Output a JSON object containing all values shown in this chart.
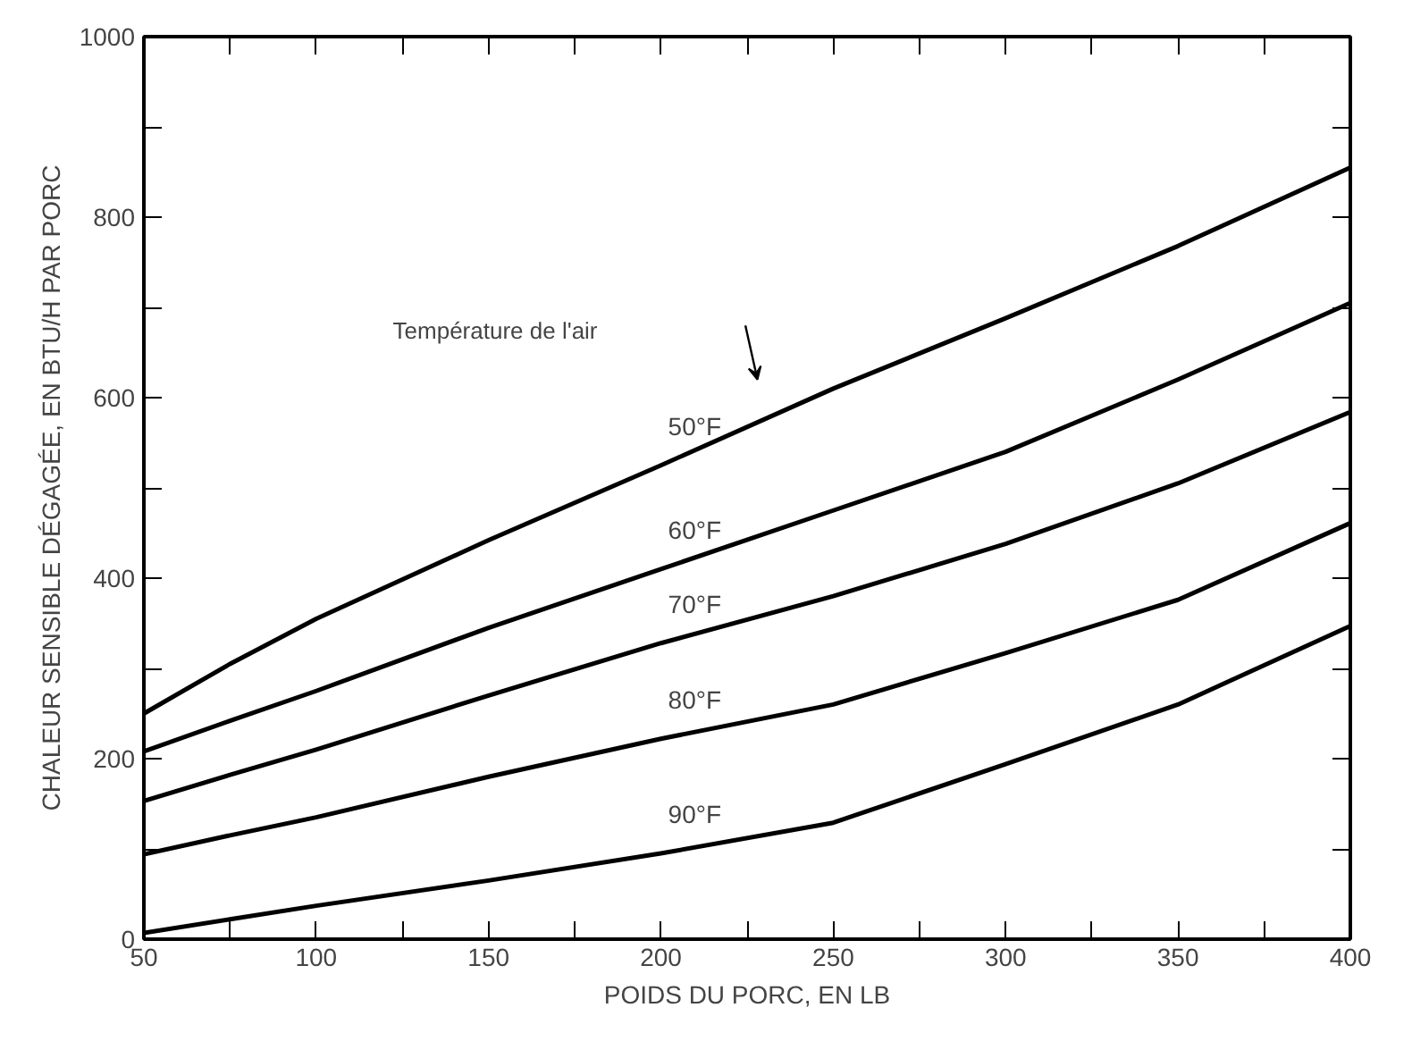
{
  "chart_data": {
    "type": "line",
    "xlabel": "POIDS DU PORC, EN LB",
    "ylabel": "CHALEUR SENSIBLE DÉGAGÉE, EN BTU/H PAR PORC",
    "x": [
      50,
      75,
      100,
      150,
      200,
      250,
      300,
      350,
      400
    ],
    "series": [
      {
        "name": "50°F",
        "color": "#000000",
        "values": [
          250,
          305,
          355,
          442,
          525,
          610,
          688,
          768,
          855
        ]
      },
      {
        "name": "60°F",
        "color": "#000000",
        "values": [
          208,
          242,
          275,
          345,
          410,
          475,
          540,
          620,
          705
        ]
      },
      {
        "name": "70°F",
        "color": "#000000",
        "values": [
          153,
          182,
          210,
          270,
          328,
          380,
          438,
          505,
          584
        ]
      },
      {
        "name": "80°F",
        "color": "#000000",
        "values": [
          94,
          115,
          135,
          180,
          222,
          260,
          317,
          376,
          461
        ]
      },
      {
        "name": "90°F",
        "color": "#000000",
        "values": [
          7,
          22,
          37,
          65,
          95,
          129,
          194,
          260,
          347
        ]
      }
    ],
    "annotations": [
      "Température de l'air"
    ],
    "xlim": [
      50,
      400
    ],
    "ylim": [
      0,
      1000
    ],
    "xticks": [
      50,
      {
        "value": 75,
        "label": null
      },
      100,
      {
        "value": 125,
        "label": null
      },
      150,
      {
        "value": 175,
        "label": null
      },
      200,
      {
        "value": 225,
        "label": null
      },
      250,
      {
        "value": 275,
        "label": null
      },
      300,
      {
        "value": 325,
        "label": null
      },
      350,
      {
        "value": 375,
        "label": null
      },
      400
    ],
    "yticks": [
      0,
      {
        "value": 100,
        "label": null
      },
      200,
      {
        "value": 300,
        "label": null
      },
      400,
      {
        "value": 500,
        "label": null
      },
      600,
      {
        "value": 700,
        "label": null
      },
      800,
      {
        "value": 900,
        "label": null
      },
      1000
    ],
    "grid": false,
    "legend": false,
    "marker": "none",
    "line_style": "solid"
  }
}
